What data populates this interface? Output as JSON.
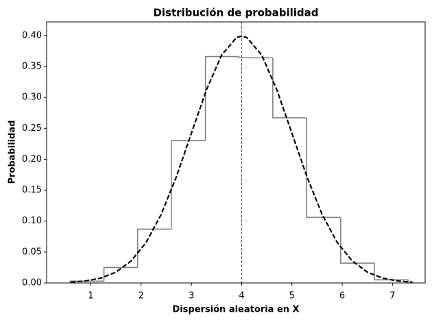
{
  "chart_data": {
    "type": "histogram",
    "title": "Distribución de probabilidad",
    "xlabel": "Dispersión aleatoria en X",
    "ylabel": "Probabilidad",
    "bins": [
      0.59,
      1.26,
      1.93,
      2.6,
      3.28,
      3.95,
      4.62,
      5.29,
      5.97,
      6.64,
      7.31
    ],
    "values": [
      0.003,
      0.025,
      0.087,
      0.23,
      0.366,
      0.364,
      0.267,
      0.106,
      0.032,
      0.005
    ],
    "color": "#808080",
    "curve": {
      "color": "#000000",
      "x": [
        0.6,
        0.9,
        1.2,
        1.5,
        1.8,
        2.1,
        2.4,
        2.7,
        3.0,
        3.3,
        3.6,
        3.9,
        4.0,
        4.1,
        4.4,
        4.7,
        5.0,
        5.3,
        5.6,
        5.9,
        6.2,
        6.5,
        6.8,
        7.1,
        7.4
      ],
      "values": [
        0.0012,
        0.0033,
        0.0079,
        0.0175,
        0.0355,
        0.0656,
        0.1109,
        0.1714,
        0.242,
        0.3123,
        0.3683,
        0.397,
        0.3989,
        0.397,
        0.3683,
        0.3123,
        0.242,
        0.1714,
        0.1109,
        0.0656,
        0.0355,
        0.0175,
        0.0079,
        0.0033,
        0.0012
      ]
    },
    "vline": {
      "x": 4,
      "color": "#ff0000"
    },
    "xlim": [
      0.12,
      7.65
    ],
    "ylim": [
      0,
      0.422
    ],
    "xticks": [
      1,
      2,
      3,
      4,
      5,
      6,
      7
    ],
    "yticks": [
      {
        "value": 0,
        "label": "0.00"
      },
      {
        "value": 0.05,
        "label": "0.05"
      },
      {
        "value": 0.1,
        "label": "0.10"
      },
      {
        "value": 0.15,
        "label": "0.15"
      },
      {
        "value": 0.2,
        "label": "0.20"
      },
      {
        "value": 0.25,
        "label": "0.25"
      },
      {
        "value": 0.3,
        "label": "0.30"
      },
      {
        "value": 0.35,
        "label": "0.35"
      },
      {
        "value": 0.4,
        "label": "0.40"
      }
    ]
  }
}
